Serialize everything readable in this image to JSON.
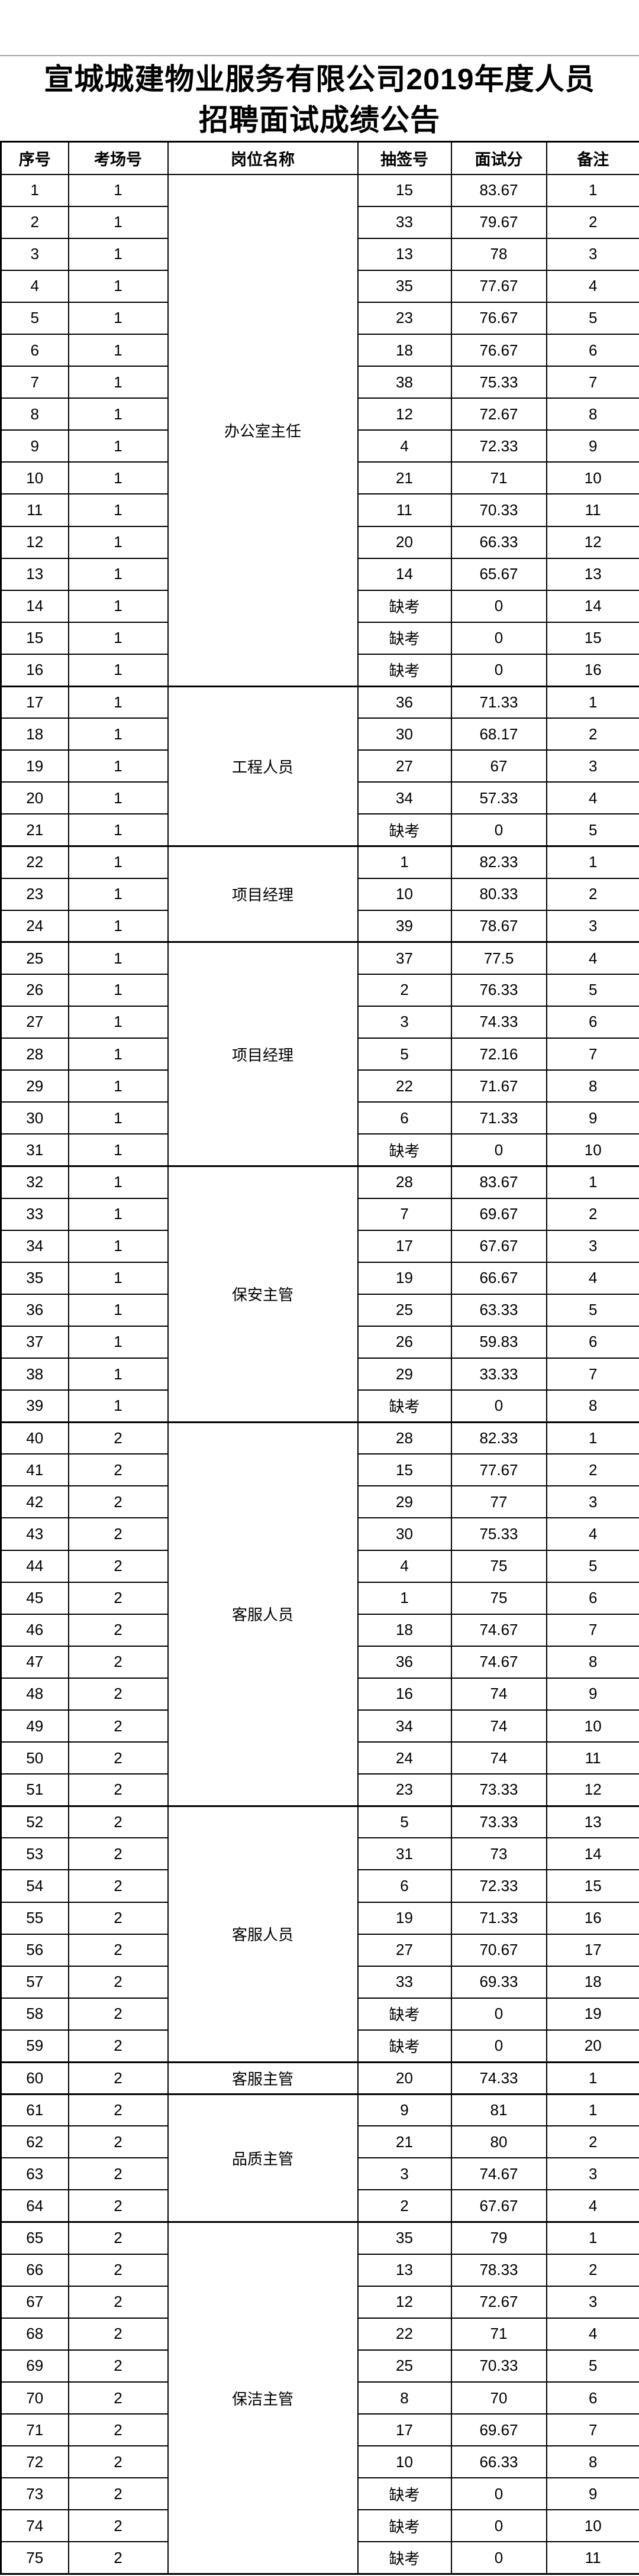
{
  "title": {
    "line1": "宣城城建物业服务有限公司2019年度人员",
    "line2": "招聘面试成绩公告"
  },
  "table": {
    "headers": [
      "序号",
      "考场号",
      "岗位名称",
      "抽签号",
      "面试分",
      "备注"
    ],
    "groups": [
      {
        "position": "办公室主任",
        "rows": [
          [
            "1",
            "1",
            "15",
            "83.67",
            "1"
          ],
          [
            "2",
            "1",
            "33",
            "79.67",
            "2"
          ],
          [
            "3",
            "1",
            "13",
            "78",
            "3"
          ],
          [
            "4",
            "1",
            "35",
            "77.67",
            "4"
          ],
          [
            "5",
            "1",
            "23",
            "76.67",
            "5"
          ],
          [
            "6",
            "1",
            "18",
            "76.67",
            "6"
          ],
          [
            "7",
            "1",
            "38",
            "75.33",
            "7"
          ],
          [
            "8",
            "1",
            "12",
            "72.67",
            "8"
          ],
          [
            "9",
            "1",
            "4",
            "72.33",
            "9"
          ],
          [
            "10",
            "1",
            "21",
            "71",
            "10"
          ],
          [
            "11",
            "1",
            "11",
            "70.33",
            "11"
          ],
          [
            "12",
            "1",
            "20",
            "66.33",
            "12"
          ],
          [
            "13",
            "1",
            "14",
            "65.67",
            "13"
          ],
          [
            "14",
            "1",
            "缺考",
            "0",
            "14"
          ],
          [
            "15",
            "1",
            "缺考",
            "0",
            "15"
          ],
          [
            "16",
            "1",
            "缺考",
            "0",
            "16"
          ]
        ]
      },
      {
        "position": "工程人员",
        "rows": [
          [
            "17",
            "1",
            "36",
            "71.33",
            "1"
          ],
          [
            "18",
            "1",
            "30",
            "68.17",
            "2"
          ],
          [
            "19",
            "1",
            "27",
            "67",
            "3"
          ],
          [
            "20",
            "1",
            "34",
            "57.33",
            "4"
          ],
          [
            "21",
            "1",
            "缺考",
            "0",
            "5"
          ]
        ]
      },
      {
        "position": "项目经理",
        "rows": [
          [
            "22",
            "1",
            "1",
            "82.33",
            "1"
          ],
          [
            "23",
            "1",
            "10",
            "80.33",
            "2"
          ],
          [
            "24",
            "1",
            "39",
            "78.67",
            "3"
          ]
        ]
      },
      {
        "position": "项目经理",
        "rows": [
          [
            "25",
            "1",
            "37",
            "77.5",
            "4"
          ],
          [
            "26",
            "1",
            "2",
            "76.33",
            "5"
          ],
          [
            "27",
            "1",
            "3",
            "74.33",
            "6"
          ],
          [
            "28",
            "1",
            "5",
            "72.16",
            "7"
          ],
          [
            "29",
            "1",
            "22",
            "71.67",
            "8"
          ],
          [
            "30",
            "1",
            "6",
            "71.33",
            "9"
          ],
          [
            "31",
            "1",
            "缺考",
            "0",
            "10"
          ]
        ]
      },
      {
        "position": "保安主管",
        "rows": [
          [
            "32",
            "1",
            "28",
            "83.67",
            "1"
          ],
          [
            "33",
            "1",
            "7",
            "69.67",
            "2"
          ],
          [
            "34",
            "1",
            "17",
            "67.67",
            "3"
          ],
          [
            "35",
            "1",
            "19",
            "66.67",
            "4"
          ],
          [
            "36",
            "1",
            "25",
            "63.33",
            "5"
          ],
          [
            "37",
            "1",
            "26",
            "59.83",
            "6"
          ],
          [
            "38",
            "1",
            "29",
            "33.33",
            "7"
          ],
          [
            "39",
            "1",
            "缺考",
            "0",
            "8"
          ]
        ]
      },
      {
        "position": "客服人员",
        "rows": [
          [
            "40",
            "2",
            "28",
            "82.33",
            "1"
          ],
          [
            "41",
            "2",
            "15",
            "77.67",
            "2"
          ],
          [
            "42",
            "2",
            "29",
            "77",
            "3"
          ],
          [
            "43",
            "2",
            "30",
            "75.33",
            "4"
          ],
          [
            "44",
            "2",
            "4",
            "75",
            "5"
          ],
          [
            "45",
            "2",
            "1",
            "75",
            "6"
          ],
          [
            "46",
            "2",
            "18",
            "74.67",
            "7"
          ],
          [
            "47",
            "2",
            "36",
            "74.67",
            "8"
          ],
          [
            "48",
            "2",
            "16",
            "74",
            "9"
          ],
          [
            "49",
            "2",
            "34",
            "74",
            "10"
          ],
          [
            "50",
            "2",
            "24",
            "74",
            "11"
          ],
          [
            "51",
            "2",
            "23",
            "73.33",
            "12"
          ]
        ]
      },
      {
        "position": "客服人员",
        "rows": [
          [
            "52",
            "2",
            "5",
            "73.33",
            "13"
          ],
          [
            "53",
            "2",
            "31",
            "73",
            "14"
          ],
          [
            "54",
            "2",
            "6",
            "72.33",
            "15"
          ],
          [
            "55",
            "2",
            "19",
            "71.33",
            "16"
          ],
          [
            "56",
            "2",
            "27",
            "70.67",
            "17"
          ],
          [
            "57",
            "2",
            "33",
            "69.33",
            "18"
          ],
          [
            "58",
            "2",
            "缺考",
            "0",
            "19"
          ],
          [
            "59",
            "2",
            "缺考",
            "0",
            "20"
          ]
        ]
      },
      {
        "position": "客服主管",
        "rows": [
          [
            "60",
            "2",
            "20",
            "74.33",
            "1"
          ]
        ]
      },
      {
        "position": "品质主管",
        "rows": [
          [
            "61",
            "2",
            "9",
            "81",
            "1"
          ],
          [
            "62",
            "2",
            "21",
            "80",
            "2"
          ],
          [
            "63",
            "2",
            "3",
            "74.67",
            "3"
          ],
          [
            "64",
            "2",
            "2",
            "67.67",
            "4"
          ]
        ]
      },
      {
        "position": "保洁主管",
        "rows": [
          [
            "65",
            "2",
            "35",
            "79",
            "1"
          ],
          [
            "66",
            "2",
            "13",
            "78.33",
            "2"
          ],
          [
            "67",
            "2",
            "12",
            "72.67",
            "3"
          ],
          [
            "68",
            "2",
            "22",
            "71",
            "4"
          ],
          [
            "69",
            "2",
            "25",
            "70.33",
            "5"
          ],
          [
            "70",
            "2",
            "8",
            "70",
            "6"
          ],
          [
            "71",
            "2",
            "17",
            "69.67",
            "7"
          ],
          [
            "72",
            "2",
            "10",
            "66.33",
            "8"
          ],
          [
            "73",
            "2",
            "缺考",
            "0",
            "9"
          ],
          [
            "74",
            "2",
            "缺考",
            "0",
            "10"
          ],
          [
            "75",
            "2",
            "缺考",
            "0",
            "11"
          ]
        ]
      }
    ]
  }
}
